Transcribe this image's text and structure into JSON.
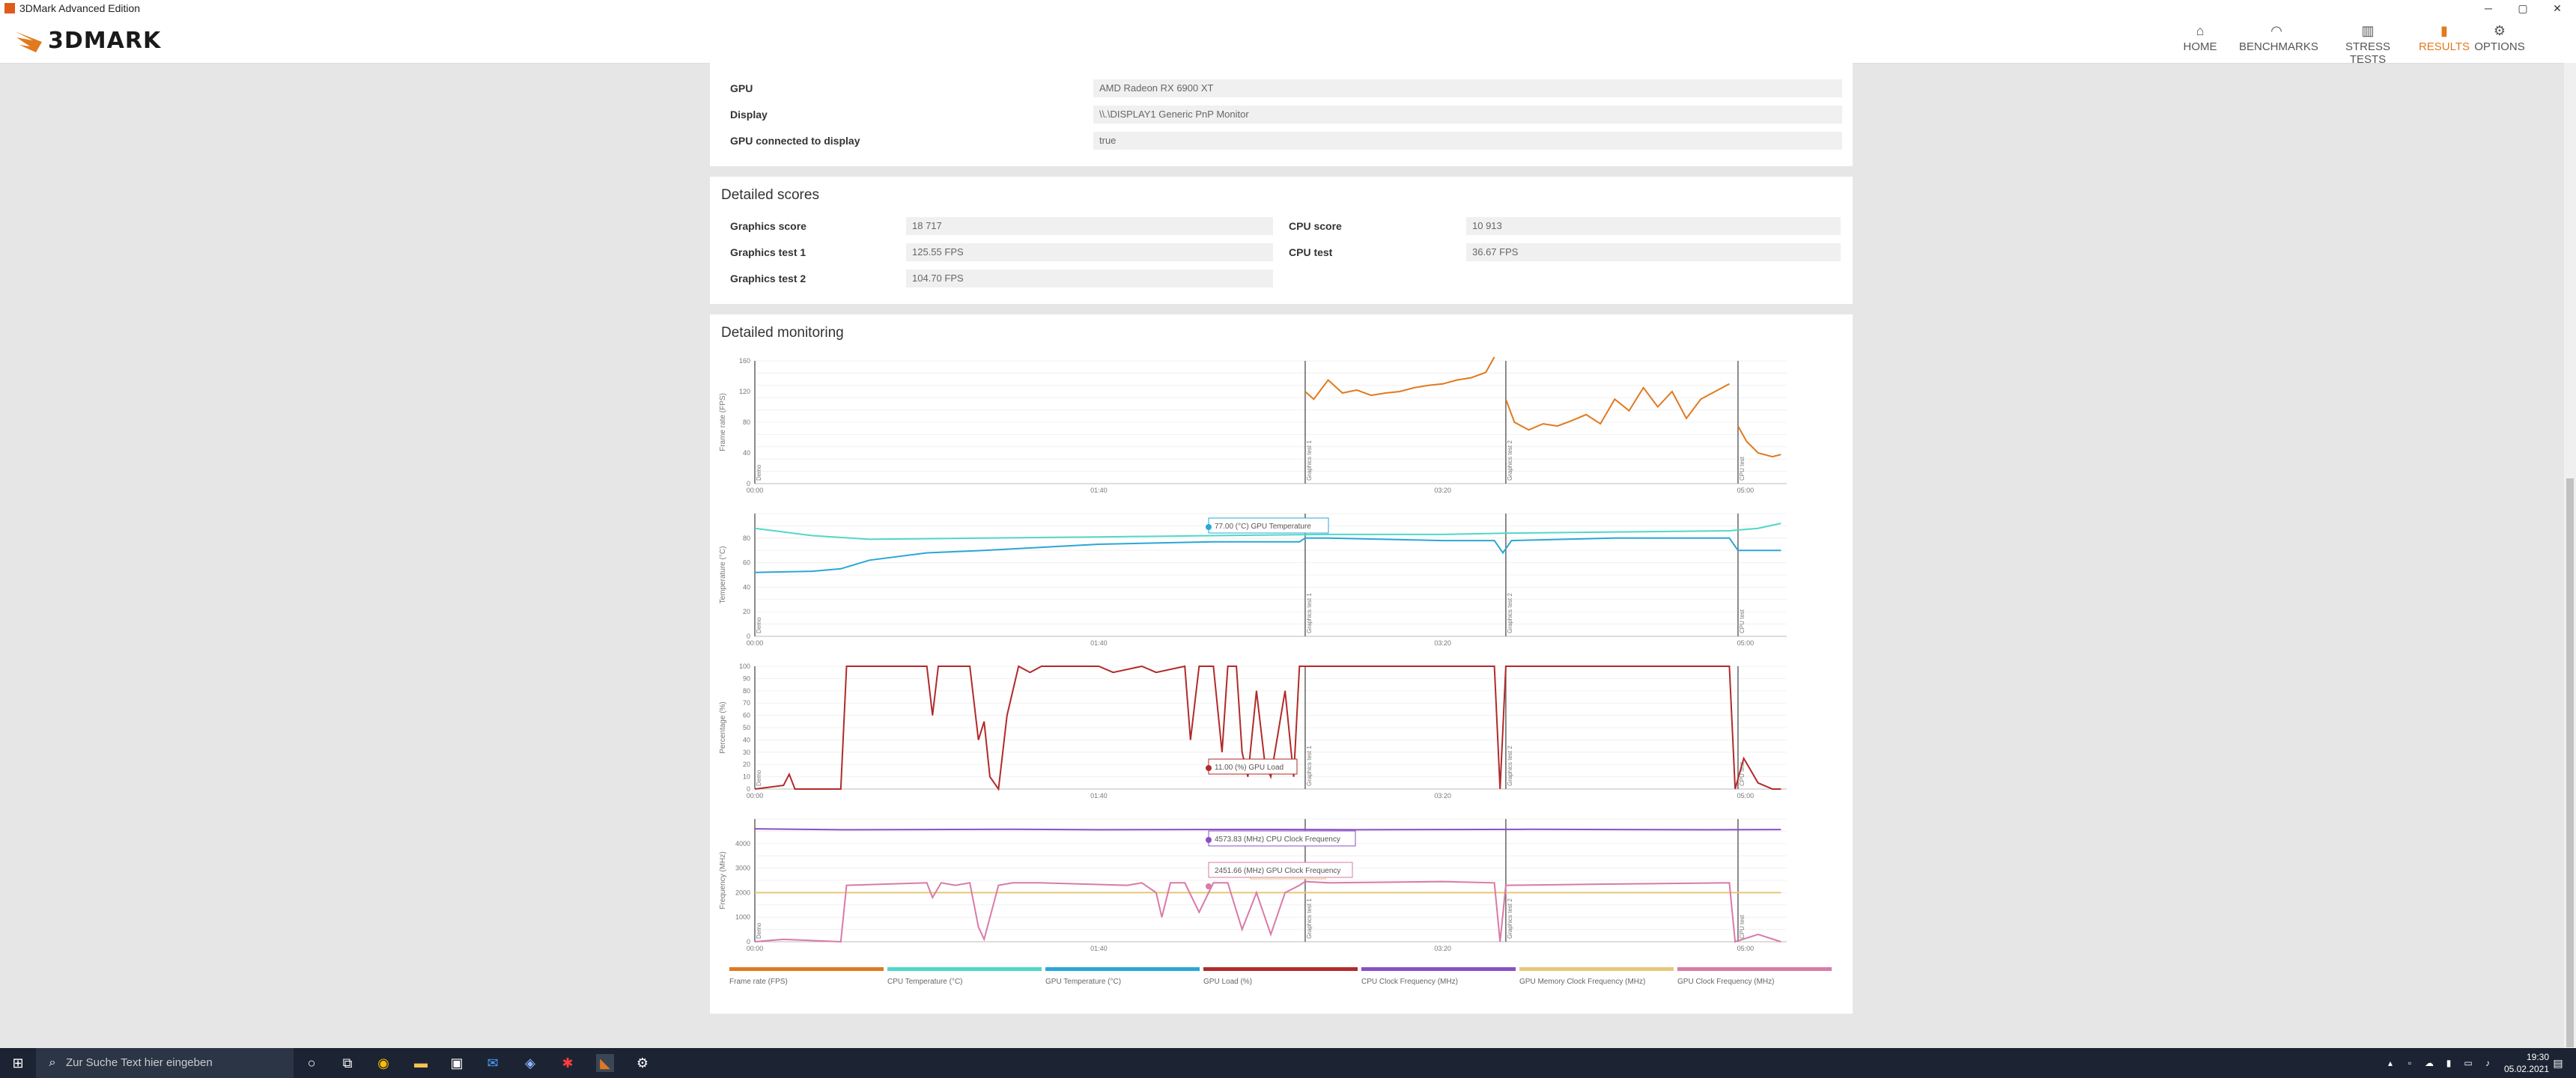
{
  "window": {
    "title": "3DMark Advanced Edition",
    "controls": {
      "minimize": "─",
      "maximize": "▢",
      "close": "✕"
    }
  },
  "header": {
    "logo": "3DMARK",
    "nav": [
      {
        "label": "HOME",
        "icon": "home-icon",
        "glyph": "⌂"
      },
      {
        "label": "BENCHMARKS",
        "icon": "benchmarks-icon",
        "glyph": "◠"
      },
      {
        "label": "STRESS TESTS",
        "icon": "stress-tests-icon",
        "glyph": "▥"
      },
      {
        "label": "RESULTS",
        "icon": "results-icon",
        "glyph": "▮"
      },
      {
        "label": "OPTIONS",
        "icon": "gear-icon",
        "glyph": "⚙"
      }
    ],
    "active_nav": "RESULTS",
    "accent_color": "#e07a1f"
  },
  "system_info": {
    "rows": [
      {
        "label": "GPU",
        "value": "AMD Radeon RX 6900 XT"
      },
      {
        "label": "Display",
        "value": "\\\\.\\DISPLAY1 Generic PnP Monitor"
      },
      {
        "label": "GPU connected to display",
        "value": "true"
      }
    ]
  },
  "detailed_scores": {
    "title": "Detailed scores",
    "left": [
      {
        "label": "Graphics score",
        "value": "18 717"
      },
      {
        "label": "Graphics test 1",
        "value": "125.55 FPS"
      },
      {
        "label": "Graphics test 2",
        "value": "104.70 FPS"
      }
    ],
    "right": [
      {
        "label": "CPU score",
        "value": "10 913"
      },
      {
        "label": "CPU test",
        "value": "36.67 FPS"
      }
    ]
  },
  "detailed_monitoring": {
    "title": "Detailed monitoring",
    "time_ticks": [
      "00:00",
      "01:40",
      "03:20",
      "05:00"
    ],
    "section_labels": [
      "Demo",
      "Graphics test 1",
      "Graphics test 2",
      "CPU test"
    ],
    "tooltips": {
      "gpu_temp": "77.00 (°C) GPU Temperature",
      "gpu_load": "11.00 (%) GPU Load",
      "cpu_clock": "4573.83 (MHz) CPU Clock Frequency",
      "gpu_clock": "2451.66 (MHz) GPU Clock Frequency",
      "mem_clock_partial": "quency"
    },
    "legend": [
      {
        "label": "Frame rate (FPS)",
        "color": "#e07a1f"
      },
      {
        "label": "CPU Temperature (°C)",
        "color": "#4fd8c7"
      },
      {
        "label": "GPU Temperature (°C)",
        "color": "#2aa7d6"
      },
      {
        "label": "GPU Load (%)",
        "color": "#b22a2a"
      },
      {
        "label": "CPU Clock Frequency (MHz)",
        "color": "#8a4fc4"
      },
      {
        "label": "GPU Memory Clock Frequency (MHz)",
        "color": "#e8c77a"
      },
      {
        "label": "GPU Clock Frequency (MHz)",
        "color": "#d97aa8"
      }
    ]
  },
  "chart_data": [
    {
      "type": "line",
      "ylabel": "Frame rate (FPS)",
      "ylim": [
        0,
        160
      ],
      "yticks": [
        "0",
        "40",
        "80",
        "120",
        "160"
      ],
      "series": [
        {
          "name": "Frame rate (FPS)",
          "color": "#e07a1f",
          "segments": [
            {
              "x": [
                192,
                195,
                200,
                205,
                210,
                215,
                220,
                225,
                230,
                235,
                240,
                245,
                250,
                255,
                258
              ],
              "y": [
                120,
                110,
                135,
                118,
                122,
                115,
                118,
                120,
                125,
                128,
                130,
                135,
                138,
                145,
                165
              ]
            },
            {
              "x": [
                262,
                265,
                270,
                275,
                280,
                285,
                290,
                295,
                300,
                305,
                310,
                315,
                320,
                325,
                330,
                335,
                340
              ],
              "y": [
                110,
                80,
                70,
                78,
                75,
                82,
                90,
                78,
                110,
                95,
                125,
                100,
                120,
                85,
                110,
                120,
                130
              ]
            },
            {
              "x": [
                343,
                346,
                350,
                355,
                358
              ],
              "y": [
                75,
                55,
                40,
                35,
                38
              ]
            }
          ]
        }
      ]
    },
    {
      "type": "line",
      "ylabel": "Temperature (°C)",
      "ylim": [
        0,
        100
      ],
      "yticks": [
        "0",
        "20",
        "40",
        "60",
        "80"
      ],
      "series": [
        {
          "name": "CPU Temperature (°C)",
          "color": "#4fd8c7",
          "x": [
            0,
            20,
            40,
            80,
            120,
            160,
            200,
            240,
            262,
            300,
            340,
            350,
            358
          ],
          "y": [
            88,
            82,
            79,
            80,
            81,
            82,
            83,
            83,
            84,
            85,
            86,
            88,
            92
          ]
        },
        {
          "name": "GPU Temperature (°C)",
          "color": "#2aa7d6",
          "x": [
            0,
            20,
            30,
            40,
            60,
            80,
            120,
            160,
            190,
            192,
            200,
            240,
            258,
            261,
            264,
            300,
            340,
            343,
            350,
            358
          ],
          "y": [
            52,
            53,
            55,
            62,
            68,
            70,
            75,
            77,
            77,
            80,
            80,
            78,
            78,
            68,
            78,
            80,
            80,
            70,
            70,
            70
          ]
        }
      ]
    },
    {
      "type": "line",
      "ylabel": "Percentage (%)",
      "ylim": [
        0,
        100
      ],
      "yticks": [
        "0",
        "10",
        "20",
        "30",
        "40",
        "50",
        "60",
        "70",
        "80",
        "90",
        "100"
      ],
      "series": [
        {
          "name": "GPU Load (%)",
          "color": "#b22a2a",
          "x": [
            0,
            10,
            12,
            14,
            30,
            32,
            60,
            62,
            64,
            70,
            75,
            78,
            80,
            82,
            85,
            88,
            92,
            96,
            100,
            120,
            125,
            135,
            140,
            150,
            152,
            155,
            160,
            163,
            165,
            168,
            170,
            172,
            175,
            178,
            180,
            185,
            188,
            190,
            192,
            195,
            200,
            240,
            258,
            260,
            262,
            265,
            300,
            320,
            340,
            342,
            345,
            350,
            355,
            358
          ],
          "y": [
            0,
            3,
            12,
            0,
            0,
            100,
            100,
            60,
            100,
            100,
            100,
            40,
            55,
            10,
            0,
            60,
            100,
            95,
            100,
            100,
            95,
            100,
            95,
            100,
            40,
            100,
            100,
            30,
            100,
            100,
            30,
            10,
            80,
            20,
            10,
            80,
            10,
            100,
            100,
            100,
            100,
            100,
            100,
            0,
            100,
            100,
            100,
            100,
            100,
            0,
            25,
            5,
            0,
            0
          ]
        }
      ]
    },
    {
      "type": "line",
      "ylabel": "Frequency (MHz)",
      "ylim": [
        0,
        5000
      ],
      "yticks": [
        "0",
        "1000",
        "2000",
        "3000",
        "4000"
      ],
      "series": [
        {
          "name": "CPU Clock Frequency (MHz)",
          "color": "#8a4fc4",
          "x": [
            0,
            30,
            60,
            90,
            120,
            150,
            180,
            210,
            240,
            270,
            300,
            330,
            358
          ],
          "y": [
            4600,
            4560,
            4570,
            4580,
            4560,
            4570,
            4573,
            4560,
            4570,
            4580,
            4570,
            4560,
            4570
          ]
        },
        {
          "name": "GPU Memory Clock Frequency (MHz)",
          "color": "#e8c77a",
          "x": [
            0,
            60,
            120,
            180,
            240,
            300,
            358
          ],
          "y": [
            2000,
            2000,
            2000,
            2000,
            2000,
            2000,
            2000
          ]
        },
        {
          "name": "GPU Clock Frequency (MHz)",
          "color": "#d97aa8",
          "x": [
            0,
            10,
            30,
            32,
            60,
            62,
            65,
            70,
            75,
            78,
            80,
            85,
            90,
            100,
            130,
            135,
            140,
            142,
            145,
            150,
            155,
            160,
            165,
            170,
            175,
            180,
            185,
            190,
            192,
            200,
            240,
            258,
            260,
            262,
            300,
            340,
            342,
            350,
            358
          ],
          "y": [
            0,
            100,
            0,
            2300,
            2400,
            1800,
            2400,
            2300,
            2400,
            600,
            100,
            2300,
            2400,
            2400,
            2300,
            2400,
            2000,
            1000,
            2400,
            2400,
            1200,
            2400,
            2400,
            500,
            2000,
            300,
            2000,
            2300,
            2450,
            2400,
            2450,
            2400,
            0,
            2300,
            2350,
            2400,
            0,
            300,
            0
          ]
        }
      ]
    }
  ],
  "taskbar": {
    "search_placeholder": "Zur Suche Text hier eingeben",
    "time": "19:30",
    "date": "05.02.2021"
  }
}
